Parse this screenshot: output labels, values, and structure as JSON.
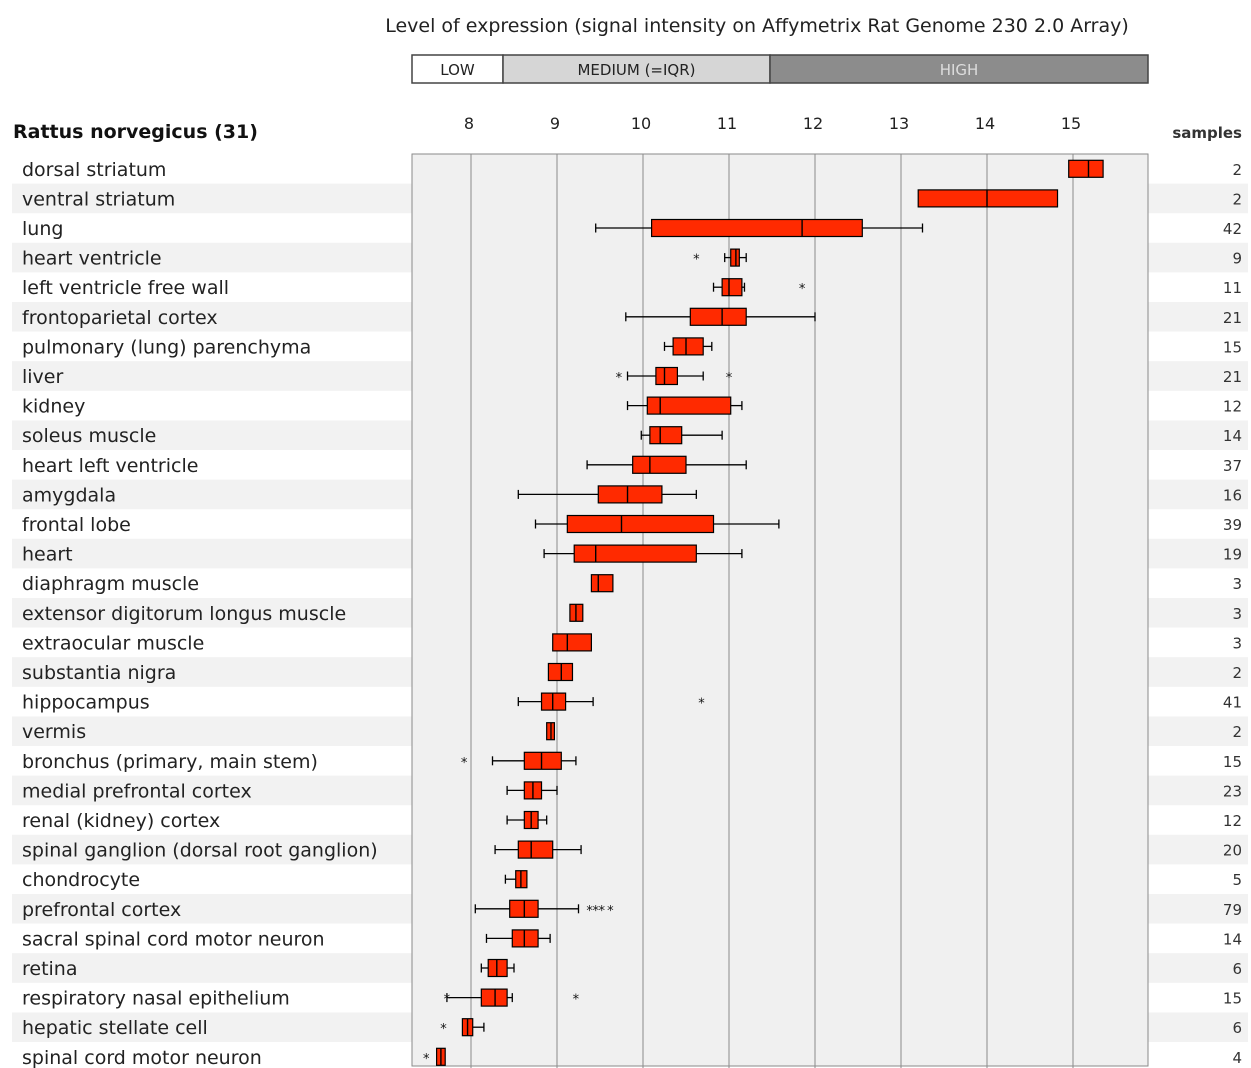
{
  "chart_data": {
    "type": "boxplot",
    "title": "Level of expression (signal intensity on Affymetrix Rat Genome 230 2.0 Array)",
    "species_label": "Rattus norvegicus (31)",
    "samples_header": "samples",
    "legend": [
      {
        "label": "LOW",
        "color": "#ffffff",
        "text_color": "#222222"
      },
      {
        "label": "MEDIUM (=IQR)",
        "color": "#d6d6d6",
        "text_color": "#222222"
      },
      {
        "label": "HIGH",
        "color": "#8c8c8c",
        "text_color": "#dddddd"
      }
    ],
    "x_ticks": [
      8,
      9,
      10,
      11,
      12,
      13,
      14,
      15
    ],
    "xlim": [
      7.5,
      16.0
    ],
    "box_color": "#ff2a00",
    "grid": true,
    "rows": [
      {
        "tissue": "dorsal striatum",
        "samples": 2,
        "wlo": null,
        "q1": 14.95,
        "median": 15.18,
        "q3": 15.35,
        "whi": null,
        "outliers": []
      },
      {
        "tissue": "ventral striatum",
        "samples": 2,
        "wlo": null,
        "q1": 13.2,
        "median": 14.0,
        "q3": 14.82,
        "whi": null,
        "outliers": []
      },
      {
        "tissue": "lung",
        "samples": 42,
        "wlo": 9.45,
        "q1": 10.1,
        "median": 11.85,
        "q3": 12.55,
        "whi": 13.25,
        "outliers": []
      },
      {
        "tissue": "heart ventricle",
        "samples": 9,
        "wlo": 10.95,
        "q1": 11.02,
        "median": 11.08,
        "q3": 11.12,
        "whi": 11.2,
        "outliers": [
          10.62
        ]
      },
      {
        "tissue": "left ventricle free wall",
        "samples": 11,
        "wlo": 10.82,
        "q1": 10.92,
        "median": 11.0,
        "q3": 11.15,
        "whi": 11.18,
        "outliers": [
          11.85
        ]
      },
      {
        "tissue": "frontoparietal cortex",
        "samples": 21,
        "wlo": 9.8,
        "q1": 10.55,
        "median": 10.92,
        "q3": 11.2,
        "whi": 12.0,
        "outliers": []
      },
      {
        "tissue": "pulmonary (lung) parenchyma",
        "samples": 15,
        "wlo": 10.25,
        "q1": 10.35,
        "median": 10.5,
        "q3": 10.7,
        "whi": 10.8,
        "outliers": []
      },
      {
        "tissue": "liver",
        "samples": 21,
        "wlo": 9.82,
        "q1": 10.15,
        "median": 10.25,
        "q3": 10.4,
        "whi": 10.7,
        "outliers": [
          9.72,
          11.0
        ]
      },
      {
        "tissue": "kidney",
        "samples": 12,
        "wlo": 9.82,
        "q1": 10.05,
        "median": 10.2,
        "q3": 11.02,
        "whi": 11.15,
        "outliers": []
      },
      {
        "tissue": "soleus muscle",
        "samples": 14,
        "wlo": 9.98,
        "q1": 10.08,
        "median": 10.2,
        "q3": 10.45,
        "whi": 10.92,
        "outliers": []
      },
      {
        "tissue": "heart left ventricle",
        "samples": 37,
        "wlo": 9.35,
        "q1": 9.88,
        "median": 10.08,
        "q3": 10.5,
        "whi": 11.2,
        "outliers": []
      },
      {
        "tissue": "amygdala",
        "samples": 16,
        "wlo": 8.55,
        "q1": 9.48,
        "median": 9.82,
        "q3": 10.22,
        "whi": 10.62,
        "outliers": []
      },
      {
        "tissue": "frontal lobe",
        "samples": 39,
        "wlo": 8.75,
        "q1": 9.12,
        "median": 9.75,
        "q3": 10.82,
        "whi": 11.58,
        "outliers": []
      },
      {
        "tissue": "heart",
        "samples": 19,
        "wlo": 8.85,
        "q1": 9.2,
        "median": 9.45,
        "q3": 10.62,
        "whi": 11.15,
        "outliers": []
      },
      {
        "tissue": "diaphragm muscle",
        "samples": 3,
        "wlo": null,
        "q1": 9.4,
        "median": 9.48,
        "q3": 9.65,
        "whi": null,
        "outliers": []
      },
      {
        "tissue": "extensor digitorum longus muscle",
        "samples": 3,
        "wlo": null,
        "q1": 9.15,
        "median": 9.22,
        "q3": 9.3,
        "whi": null,
        "outliers": []
      },
      {
        "tissue": "extraocular muscle",
        "samples": 3,
        "wlo": null,
        "q1": 8.95,
        "median": 9.12,
        "q3": 9.4,
        "whi": null,
        "outliers": []
      },
      {
        "tissue": "substantia nigra",
        "samples": 2,
        "wlo": null,
        "q1": 8.9,
        "median": 9.05,
        "q3": 9.18,
        "whi": null,
        "outliers": []
      },
      {
        "tissue": "hippocampus",
        "samples": 41,
        "wlo": 8.55,
        "q1": 8.82,
        "median": 8.95,
        "q3": 9.1,
        "whi": 9.42,
        "outliers": [
          10.68
        ]
      },
      {
        "tissue": "vermis",
        "samples": 2,
        "wlo": null,
        "q1": 8.88,
        "median": 8.93,
        "q3": 8.97,
        "whi": null,
        "outliers": []
      },
      {
        "tissue": "bronchus (primary, main stem)",
        "samples": 15,
        "wlo": 8.25,
        "q1": 8.62,
        "median": 8.82,
        "q3": 9.05,
        "whi": 9.22,
        "outliers": [
          7.92
        ]
      },
      {
        "tissue": "medial prefrontal cortex",
        "samples": 23,
        "wlo": 8.42,
        "q1": 8.62,
        "median": 8.72,
        "q3": 8.82,
        "whi": 9.0,
        "outliers": []
      },
      {
        "tissue": "renal (kidney) cortex",
        "samples": 12,
        "wlo": 8.42,
        "q1": 8.62,
        "median": 8.7,
        "q3": 8.78,
        "whi": 8.88,
        "outliers": []
      },
      {
        "tissue": "spinal ganglion (dorsal root ganglion)",
        "samples": 20,
        "wlo": 8.28,
        "q1": 8.55,
        "median": 8.7,
        "q3": 8.95,
        "whi": 9.28,
        "outliers": []
      },
      {
        "tissue": "chondrocyte",
        "samples": 5,
        "wlo": 8.4,
        "q1": 8.52,
        "median": 8.58,
        "q3": 8.65,
        "whi": null,
        "outliers": []
      },
      {
        "tissue": "prefrontal cortex",
        "samples": 79,
        "wlo": 8.05,
        "q1": 8.45,
        "median": 8.62,
        "q3": 8.78,
        "whi": 9.25,
        "outliers": [
          9.38,
          9.45,
          9.52,
          9.62
        ]
      },
      {
        "tissue": "sacral spinal cord motor neuron",
        "samples": 14,
        "wlo": 8.18,
        "q1": 8.48,
        "median": 8.62,
        "q3": 8.78,
        "whi": 8.92,
        "outliers": []
      },
      {
        "tissue": "retina",
        "samples": 6,
        "wlo": 8.12,
        "q1": 8.2,
        "median": 8.3,
        "q3": 8.42,
        "whi": 8.5,
        "outliers": []
      },
      {
        "tissue": "respiratory nasal epithelium",
        "samples": 15,
        "wlo": 7.72,
        "q1": 8.12,
        "median": 8.28,
        "q3": 8.42,
        "whi": 8.48,
        "outliers": [
          7.72,
          9.22
        ]
      },
      {
        "tissue": "hepatic stellate cell",
        "samples": 6,
        "wlo": null,
        "q1": 7.9,
        "median": 7.96,
        "q3": 8.02,
        "whi": 8.15,
        "outliers": [
          7.68
        ]
      },
      {
        "tissue": "spinal cord motor neuron",
        "samples": 4,
        "wlo": null,
        "q1": 7.6,
        "median": 7.65,
        "q3": 7.7,
        "whi": null,
        "outliers": [
          7.48
        ]
      }
    ]
  }
}
